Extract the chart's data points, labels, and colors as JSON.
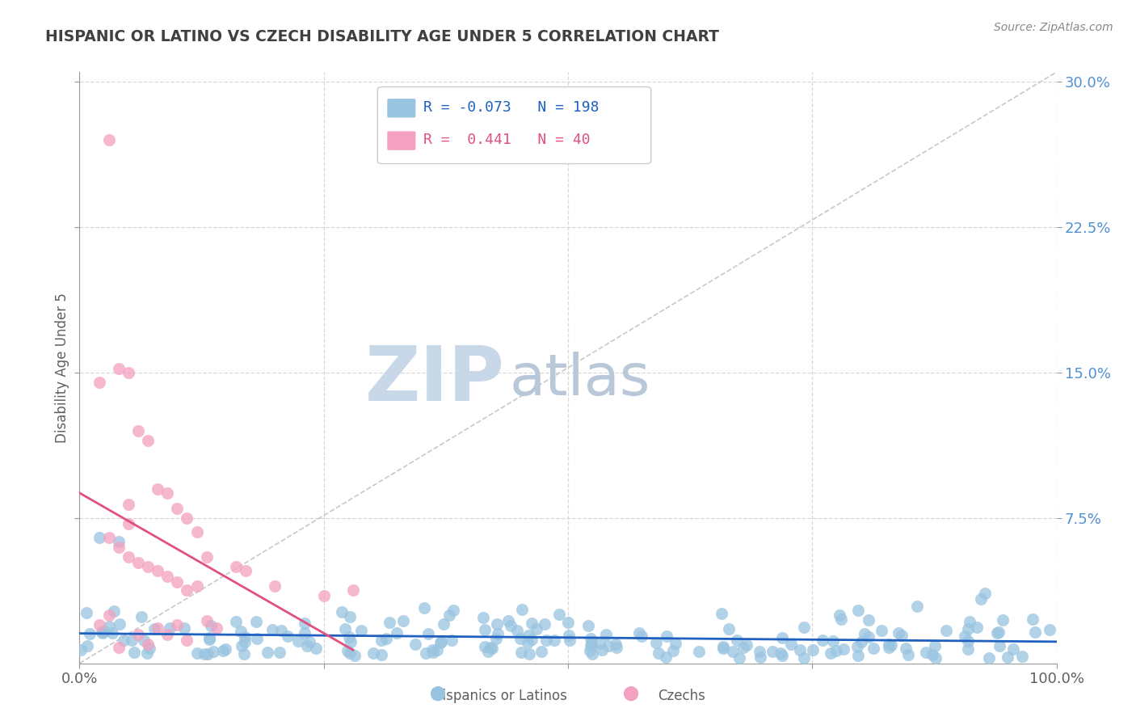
{
  "title": "HISPANIC OR LATINO VS CZECH DISABILITY AGE UNDER 5 CORRELATION CHART",
  "source": "Source: ZipAtlas.com",
  "ylabel_label": "Disability Age Under 5",
  "blue_R": -0.073,
  "blue_N": 198,
  "pink_R": 0.441,
  "pink_N": 40,
  "blue_color": "#99c4e0",
  "pink_color": "#f4a0c0",
  "blue_label": "Hispanics or Latinos",
  "pink_label": "Czechs",
  "diagonal_color": "#c8c8c8",
  "blue_trend_color": "#2060c0",
  "pink_trend_color": "#e05080",
  "background_color": "#ffffff",
  "grid_color": "#d8d8d8",
  "title_color": "#404040",
  "axis_label_color": "#606060",
  "tick_color": "#606060",
  "ytick_color": "#5090d0",
  "legend_R_color_blue": "#2060c0",
  "legend_R_color_pink": "#e05080",
  "legend_N_color": "#2060c0",
  "watermark_zip_color": "#c8d8e8",
  "watermark_atlas_color": "#b8c8d8"
}
